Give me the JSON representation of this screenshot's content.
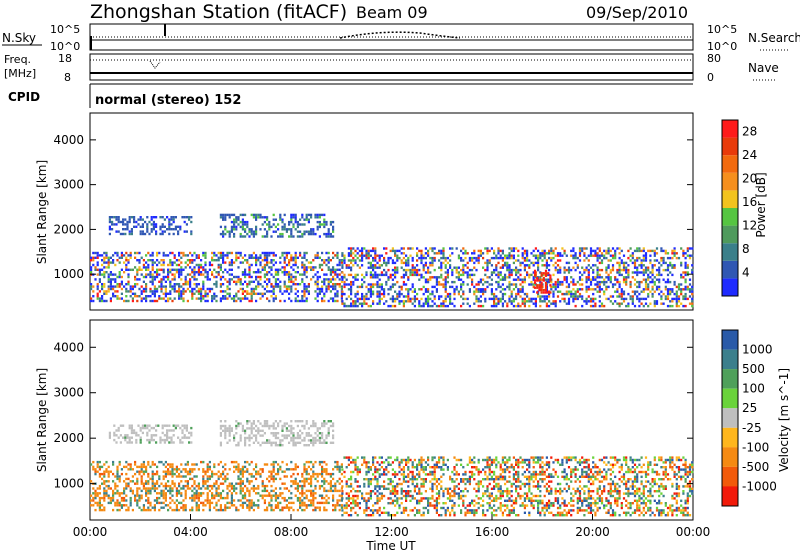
{
  "header": {
    "station": "Zhongshan Station (fitACF)",
    "beam": "Beam 09",
    "date": "09/Sep/2010"
  },
  "top_panel": {
    "left_label": "N.Sky",
    "left_ticks": [
      "10^5",
      "10^0"
    ],
    "right_ticks": [
      "10^5",
      "10^0"
    ],
    "right_label": "N.Search"
  },
  "freq_panel": {
    "left_label_1": "Freq.",
    "left_label_2": "[MHz]",
    "left_ticks": [
      "18",
      "8"
    ],
    "right_ticks": [
      "80",
      "0"
    ],
    "right_label": "Nave"
  },
  "cpid_panel": {
    "label": "CPID",
    "text": "normal (stereo) 152"
  },
  "colors": {
    "power": [
      "#1f2bff",
      "#3057b3",
      "#3a7f8a",
      "#4f9a5c",
      "#55c541",
      "#f2c31e",
      "#f58f1e",
      "#f26a0e",
      "#e83a0a",
      "#ff1a1a"
    ],
    "velocity_pos": [
      "#2a5aa8",
      "#3b7f8c",
      "#4fa05a",
      "#6ad33a"
    ],
    "velocity_ground": "#bfbfbf",
    "velocity_neg": [
      "#ffb61c",
      "#f58a12",
      "#f25a0a",
      "#f21a0a"
    ]
  },
  "chart_data": [
    {
      "type": "heatmap",
      "title": "",
      "ylabel": "Slant Range [km]",
      "xlabel": "",
      "xlim": [
        "00:00",
        "24:00"
      ],
      "ylim": [
        200,
        4600
      ],
      "yticks": [
        "1000",
        "2000",
        "3000",
        "4000"
      ],
      "xticks": [],
      "colorbar": {
        "label": "Power [dB]",
        "ticks": [
          "4",
          "8",
          "12",
          "16",
          "20",
          "24",
          "28"
        ],
        "range": [
          0,
          30
        ]
      },
      "echo_regions": [
        {
          "t_start": "00:45",
          "t_end": "04:00",
          "range_km": [
            1900,
            2300
          ],
          "dominant": "8-12 dB"
        },
        {
          "t_start": "05:10",
          "t_end": "09:40",
          "range_km": [
            1850,
            2350
          ],
          "dominant": "8-16 dB"
        },
        {
          "t_start": "00:00",
          "t_end": "10:00",
          "range_km": [
            400,
            1500
          ],
          "dominant": "8-24 dB"
        },
        {
          "t_start": "10:00",
          "t_end": "24:00",
          "range_km": [
            300,
            1600
          ],
          "dominant": "8-28 dB"
        },
        {
          "t_start": "17:40",
          "t_end": "18:20",
          "range_km": [
            600,
            1100
          ],
          "dominant": "28 dB"
        }
      ]
    },
    {
      "type": "heatmap",
      "title": "",
      "ylabel": "Slant Range [km]",
      "xlabel": "Time UT",
      "xlim": [
        "00:00",
        "24:00"
      ],
      "ylim": [
        200,
        4600
      ],
      "yticks": [
        "1000",
        "2000",
        "3000",
        "4000"
      ],
      "xticks": [
        "00:00",
        "04:00",
        "08:00",
        "12:00",
        "16:00",
        "20:00",
        "00:00"
      ],
      "colorbar": {
        "label": "Velocity [m s^-1]",
        "ticks": [
          "1000",
          "500",
          "100",
          "25",
          "-25",
          "-100",
          "-500",
          "-1000"
        ]
      },
      "echo_regions": [
        {
          "t_start": "00:45",
          "t_end": "04:00",
          "range_km": [
            1900,
            2300
          ],
          "dominant": "ground scatter"
        },
        {
          "t_start": "05:10",
          "t_end": "09:40",
          "range_km": [
            1850,
            2400
          ],
          "dominant": "ground scatter"
        },
        {
          "t_start": "00:00",
          "t_end": "10:00",
          "range_km": [
            400,
            1500
          ],
          "dominant": "-100 to -500"
        },
        {
          "t_start": "10:00",
          "t_end": "24:00",
          "range_km": [
            300,
            1600
          ],
          "dominant": "mixed -500 to 500"
        }
      ]
    }
  ]
}
